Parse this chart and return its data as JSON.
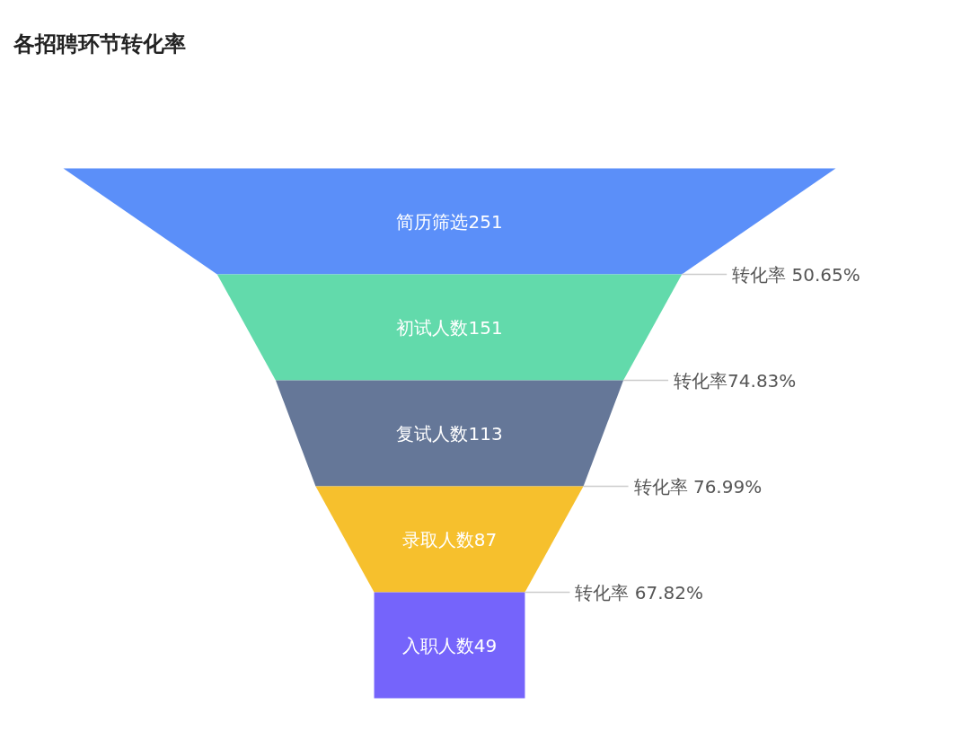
{
  "chart_data": {
    "type": "other",
    "title": "各招聘环节转化率",
    "categories": [
      "简历筛选",
      "初试人数",
      "复试人数",
      "录取人数",
      "入职人数"
    ],
    "values": [
      251,
      151,
      113,
      87,
      49
    ],
    "colors": [
      "#5b8ff9",
      "#62daab",
      "#657798",
      "#f6c02d",
      "#7564fb"
    ],
    "data_labels": true,
    "annotations": [
      "转化率 50.65%",
      "转化率74.83%",
      "转化率 76.99%",
      "转化率 67.82%"
    ]
  }
}
